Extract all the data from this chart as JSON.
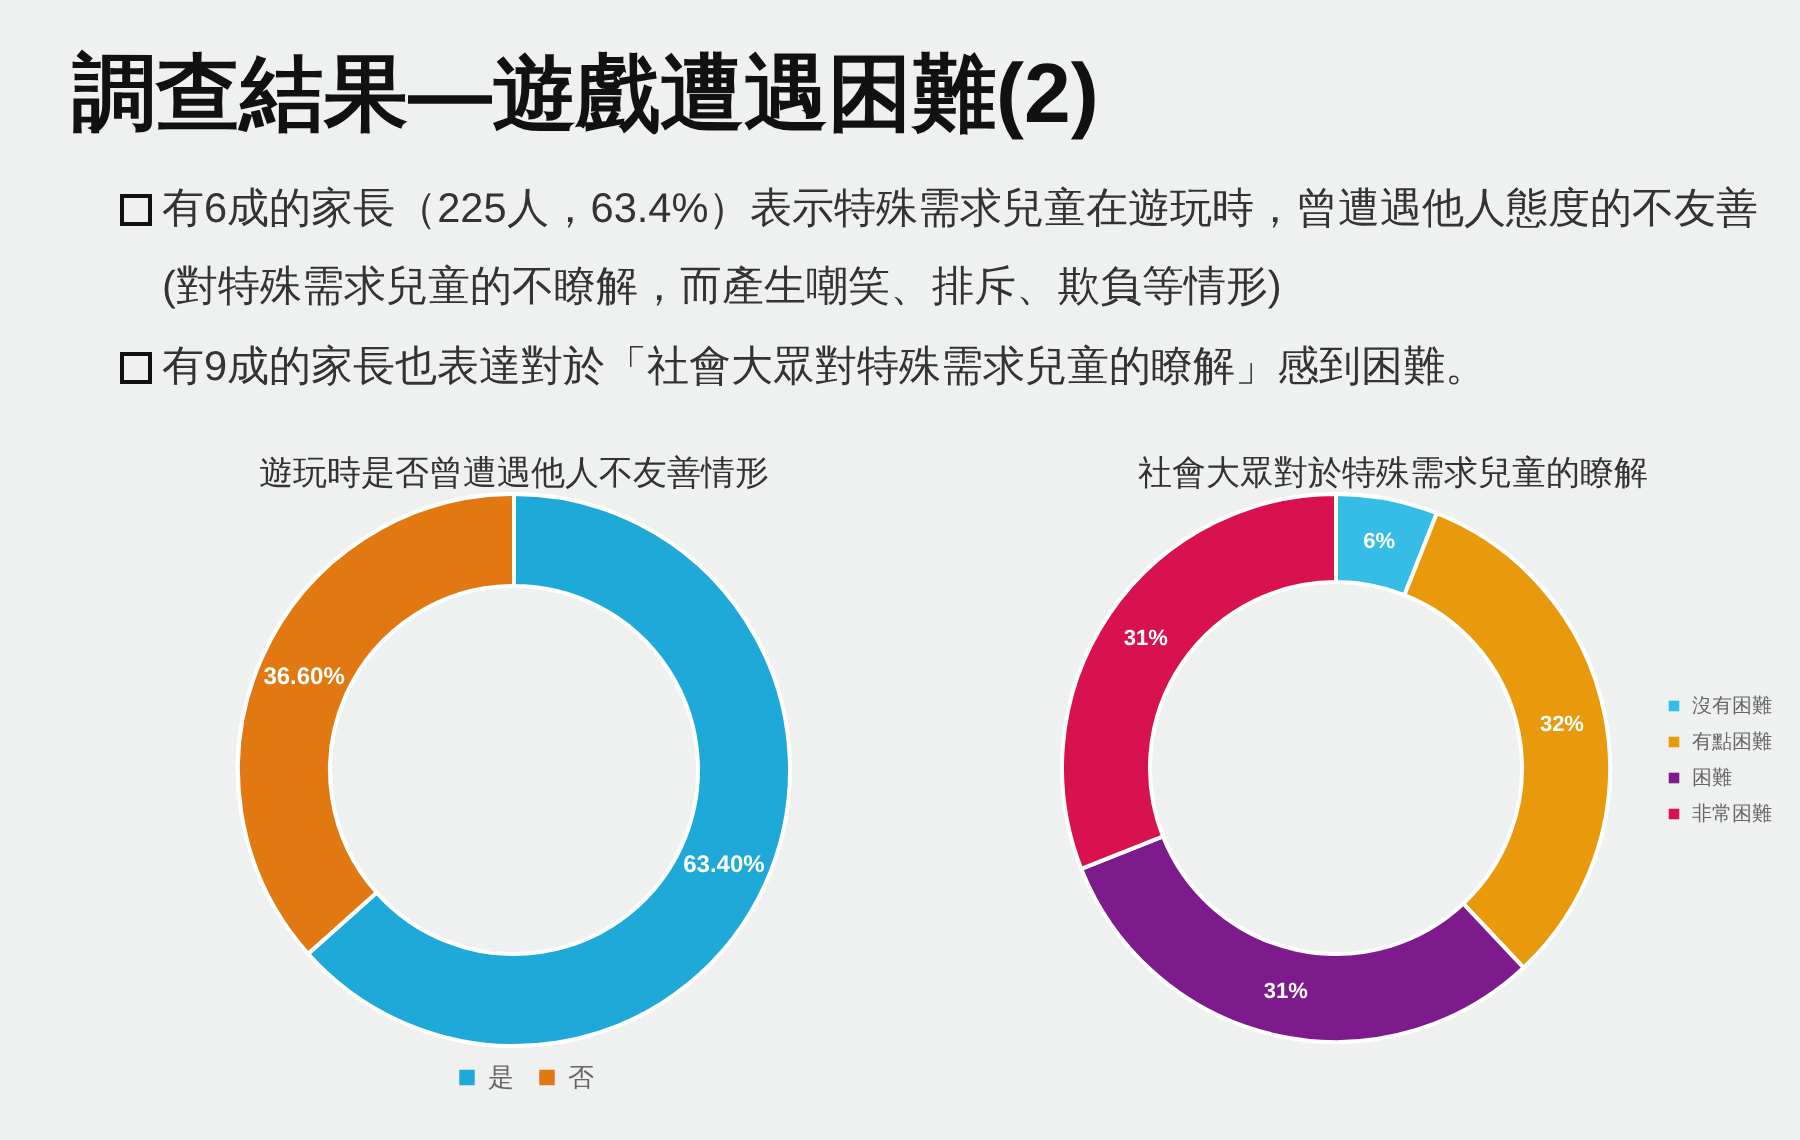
{
  "chart_data": [
    {
      "type": "other",
      "title": "調查結果—遊戲遭遇困難(2)",
      "annotations": [
        "有6成的家長（225人，63.4%）表示特殊需求兒童在遊玩時，曾遭遇他人態度的不友善(對特殊需求兒童的不瞭解，而產生嘲笑、排斥、欺負等情形)",
        "有9成的家長也表達對於「社會大眾對特殊需求兒童的瞭解」感到困難。"
      ]
    },
    {
      "type": "donut",
      "title": "遊玩時是否曾遭遇他人不友善情形",
      "categories": [
        "是",
        "否"
      ],
      "values": [
        63.4,
        36.6
      ],
      "value_labels": [
        "63.40%",
        "36.60%"
      ],
      "colors": [
        "#1ea9d9",
        "#e27812"
      ],
      "legend": "bottom"
    },
    {
      "type": "donut",
      "title": "社會大眾對於特殊需求兒童的瞭解",
      "categories": [
        "沒有困難",
        "有點困難",
        "困難",
        "非常困難"
      ],
      "values": [
        6,
        32,
        31,
        31
      ],
      "value_labels": [
        "6%",
        "32%",
        "31%",
        "31%"
      ],
      "colors": [
        "#36bde6",
        "#e99a0c",
        "#7d1a8c",
        "#d8124e"
      ],
      "legend": "right"
    }
  ]
}
